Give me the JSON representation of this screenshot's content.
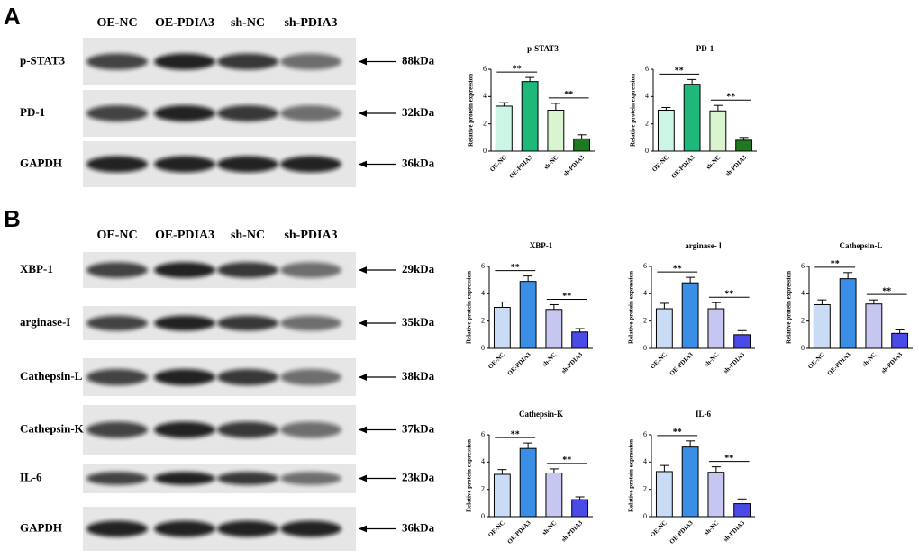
{
  "panels": [
    {
      "label": "A",
      "lanes": [
        "OE-NC",
        "OE-PDIA3",
        "sh-NC",
        "sh-PDIA3"
      ],
      "blots": [
        {
          "name": "p-STAT3",
          "size": "88kDa"
        },
        {
          "name": "PD-1",
          "size": "32kDa"
        },
        {
          "name": "GAPDH",
          "size": "36kDa"
        }
      ]
    },
    {
      "label": "B",
      "lanes": [
        "OE-NC",
        "OE-PDIA3",
        "sh-NC",
        "sh-PDIA3"
      ],
      "blots": [
        {
          "name": "XBP-1",
          "size": "29kDa"
        },
        {
          "name": "arginase-I",
          "size": "35kDa"
        },
        {
          "name": "Cathepsin-L",
          "size": "38kDa"
        },
        {
          "name": "Cathepsin-K",
          "size": "37kDa"
        },
        {
          "name": "IL-6",
          "size": "23kDa"
        },
        {
          "name": "GAPDH",
          "size": "36kDa"
        }
      ]
    }
  ],
  "chart_data": [
    {
      "type": "bar",
      "title": "p-STAT3",
      "y_label": "Relative protein expression",
      "categories": [
        "OE-NC",
        "OE-PDIA3",
        "sh-NC",
        "sh-PDIA3"
      ],
      "values": [
        3.3,
        5.1,
        3.0,
        0.9
      ],
      "errors": [
        0.25,
        0.3,
        0.5,
        0.3
      ],
      "colors": [
        "#ccf5e6",
        "#1db87a",
        "#d8f5d0",
        "#1e7a1e"
      ],
      "ylim": [
        0,
        6
      ],
      "yticks": [
        0,
        2,
        4,
        6
      ],
      "significance": [
        "**",
        "**"
      ]
    },
    {
      "type": "bar",
      "title": "PD-1",
      "y_label": "Relative protein expression",
      "categories": [
        "OE-NC",
        "OE-PDIA3",
        "sh-NC",
        "sh-PDIA3"
      ],
      "values": [
        3.0,
        4.9,
        2.95,
        0.8
      ],
      "errors": [
        0.2,
        0.35,
        0.4,
        0.2
      ],
      "colors": [
        "#ccf5e6",
        "#1db87a",
        "#d8f5d0",
        "#1e7a1e"
      ],
      "ylim": [
        0,
        6
      ],
      "yticks": [
        0,
        2,
        4,
        6
      ],
      "significance": [
        "**",
        "**"
      ]
    },
    {
      "type": "bar",
      "title": "XBP-1",
      "y_label": "Relative protein expression",
      "categories": [
        "OE-NC",
        "OE-PDIA3",
        "sh-NC",
        "sh-PDIA3"
      ],
      "values": [
        3.0,
        4.9,
        2.85,
        1.2
      ],
      "errors": [
        0.4,
        0.4,
        0.35,
        0.25
      ],
      "colors": [
        "#c8dcf5",
        "#3a8ee6",
        "#c6c6f0",
        "#4a4ae6"
      ],
      "ylim": [
        0,
        6
      ],
      "yticks": [
        0,
        2,
        4,
        6
      ],
      "significance": [
        "**",
        "**"
      ]
    },
    {
      "type": "bar",
      "title": "arginase- Ⅰ",
      "y_label": "Relative protein expression",
      "categories": [
        "OE-NC",
        "OE-PDIA3",
        "sh-NC",
        "sh-PDIA3"
      ],
      "values": [
        2.9,
        4.8,
        2.9,
        1.0
      ],
      "errors": [
        0.4,
        0.4,
        0.45,
        0.3
      ],
      "colors": [
        "#c8dcf5",
        "#3a8ee6",
        "#c6c6f0",
        "#4a4ae6"
      ],
      "ylim": [
        0,
        6
      ],
      "yticks": [
        0,
        2,
        4,
        6
      ],
      "significance": [
        "**",
        "**"
      ]
    },
    {
      "type": "bar",
      "title": "Cathepsin-L",
      "y_label": "Relative protein expression",
      "categories": [
        "OE-NC",
        "OE-PDIA3",
        "sh-NC",
        "sh-PDIA3"
      ],
      "values": [
        3.2,
        5.1,
        3.25,
        1.1
      ],
      "errors": [
        0.35,
        0.45,
        0.3,
        0.25
      ],
      "colors": [
        "#c8dcf5",
        "#3a8ee6",
        "#c6c6f0",
        "#4a4ae6"
      ],
      "ylim": [
        0,
        6
      ],
      "yticks": [
        0,
        2,
        4,
        6
      ],
      "significance": [
        "**",
        "**"
      ]
    },
    {
      "type": "bar",
      "title": "Cathepsin-K",
      "y_label": "Relative protein expression",
      "categories": [
        "OE-NC",
        "OE-PDIA3",
        "sh-NC",
        "sh-PDIA3"
      ],
      "values": [
        3.1,
        5.0,
        3.2,
        1.25
      ],
      "errors": [
        0.35,
        0.4,
        0.3,
        0.2
      ],
      "colors": [
        "#c8dcf5",
        "#3a8ee6",
        "#c6c6f0",
        "#4a4ae6"
      ],
      "ylim": [
        0,
        6
      ],
      "yticks": [
        0,
        2,
        4,
        6
      ],
      "significance": [
        "**",
        "**"
      ]
    },
    {
      "type": "bar",
      "title": "IL-6",
      "y_label": "Relative protein expression",
      "categories": [
        "OE-NC",
        "OE-PDIA3",
        "sh-NC",
        "sh-PDIA3"
      ],
      "values": [
        3.3,
        5.1,
        3.25,
        0.95
      ],
      "errors": [
        0.45,
        0.45,
        0.4,
        0.35
      ],
      "colors": [
        "#c8dcf5",
        "#3a8ee6",
        "#c6c6f0",
        "#4a4ae6"
      ],
      "ylim": [
        0,
        6
      ],
      "yticks": [
        0,
        2,
        4,
        6
      ],
      "significance": [
        "**",
        "**"
      ]
    }
  ]
}
